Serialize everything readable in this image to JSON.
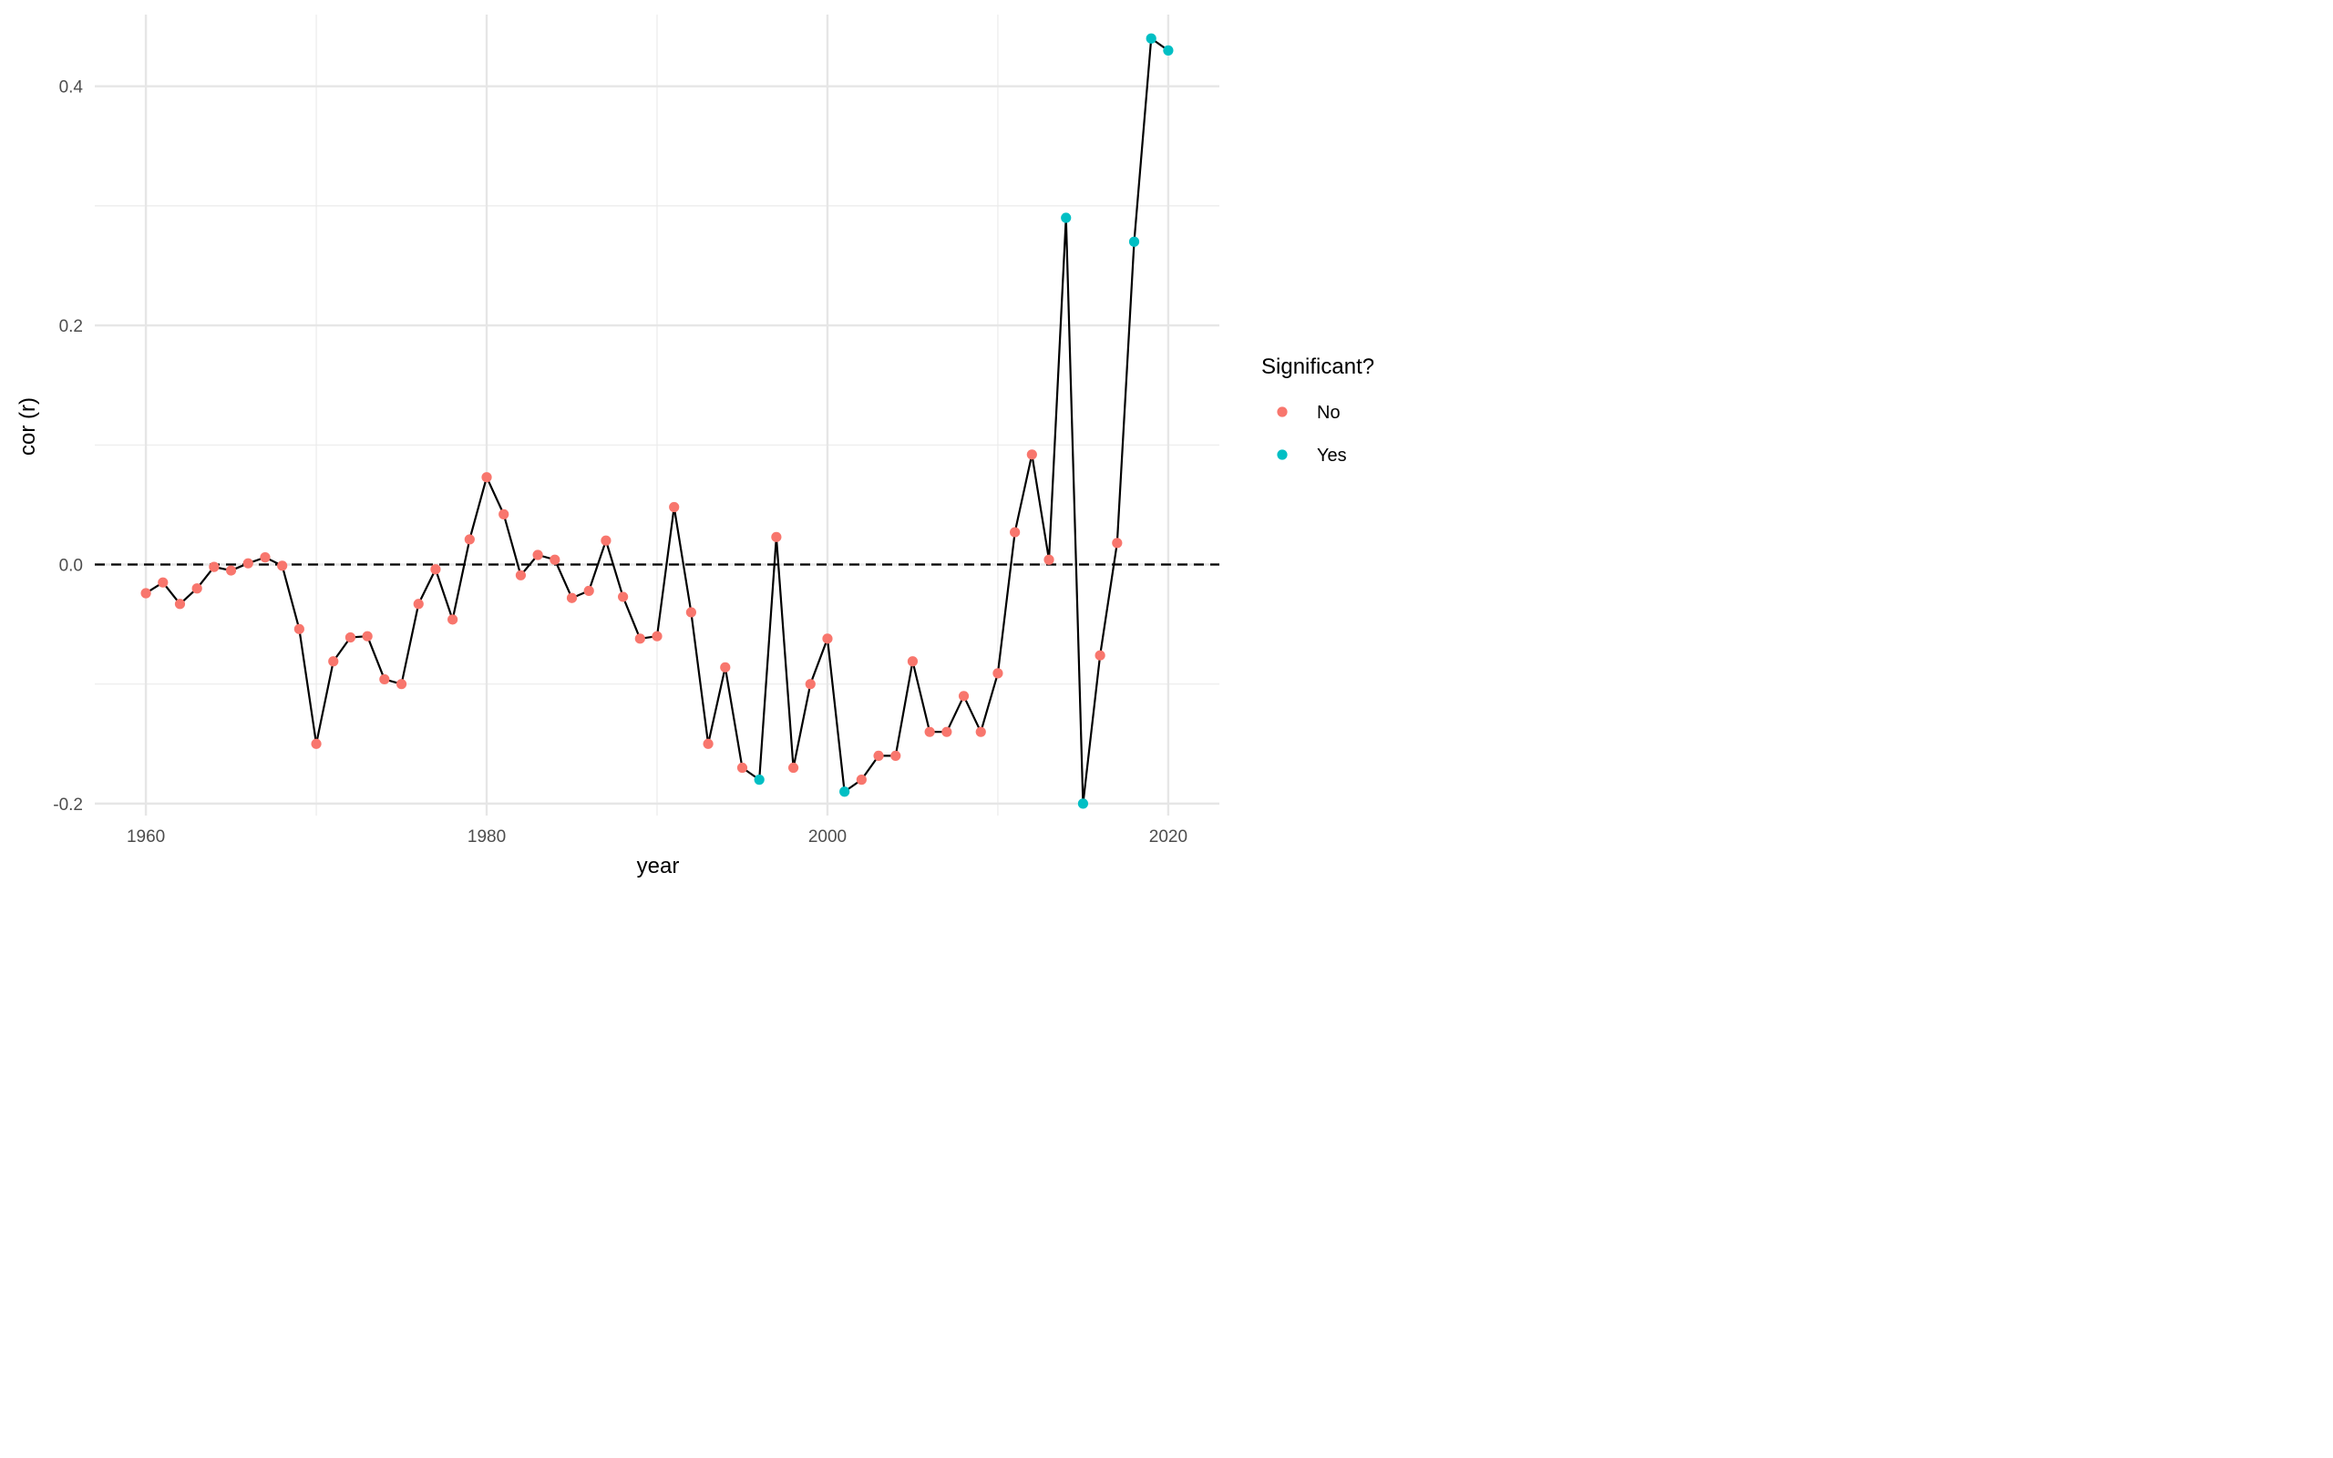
{
  "chart_data": {
    "type": "line",
    "title": "",
    "xlabel": "year",
    "ylabel": "cor (r)",
    "xlim": [
      1957,
      2023
    ],
    "ylim": [
      -0.21,
      0.46
    ],
    "x_ticks": [
      1960,
      1980,
      2000,
      2020
    ],
    "x_tick_labels": [
      "1960",
      "1980",
      "2000",
      "2020"
    ],
    "y_ticks": [
      -0.2,
      0.0,
      0.2,
      0.4
    ],
    "y_tick_labels": [
      "-0.2",
      "0.0",
      "0.2",
      "0.4"
    ],
    "grid": true,
    "reference_line": {
      "y": 0,
      "style": "dashed"
    },
    "legend": {
      "title": "Significant?",
      "placement": "right",
      "entries": [
        {
          "label": "No",
          "color": "#F8766D"
        },
        {
          "label": "Yes",
          "color": "#00BFC4"
        }
      ]
    },
    "line_color": "#000000",
    "x": [
      1960,
      1961,
      1962,
      1963,
      1964,
      1965,
      1966,
      1967,
      1968,
      1969,
      1970,
      1971,
      1972,
      1973,
      1974,
      1975,
      1976,
      1977,
      1978,
      1979,
      1980,
      1981,
      1982,
      1983,
      1984,
      1985,
      1986,
      1987,
      1988,
      1989,
      1990,
      1991,
      1992,
      1993,
      1994,
      1995,
      1996,
      1997,
      1998,
      1999,
      2000,
      2001,
      2002,
      2003,
      2004,
      2005,
      2006,
      2007,
      2008,
      2009,
      2010,
      2011,
      2012,
      2013,
      2014,
      2015,
      2016,
      2017,
      2018,
      2019,
      2020
    ],
    "y": [
      -0.024,
      -0.015,
      -0.033,
      -0.02,
      -0.002,
      -0.005,
      0.001,
      0.006,
      -0.001,
      -0.054,
      -0.15,
      -0.081,
      -0.061,
      -0.06,
      -0.096,
      -0.1,
      -0.033,
      -0.004,
      -0.046,
      0.021,
      0.073,
      0.042,
      -0.009,
      0.008,
      0.004,
      -0.028,
      -0.022,
      0.02,
      -0.027,
      -0.062,
      -0.06,
      0.048,
      -0.04,
      -0.15,
      -0.086,
      -0.17,
      -0.18,
      0.023,
      -0.17,
      -0.1,
      -0.062,
      -0.19,
      -0.18,
      -0.16,
      -0.16,
      -0.081,
      -0.14,
      -0.14,
      -0.11,
      -0.14,
      -0.091,
      0.027,
      0.092,
      0.004,
      0.29,
      -0.2,
      -0.076,
      0.018,
      0.27,
      0.44,
      0.43
    ],
    "significant": [
      "No",
      "No",
      "No",
      "No",
      "No",
      "No",
      "No",
      "No",
      "No",
      "No",
      "No",
      "No",
      "No",
      "No",
      "No",
      "No",
      "No",
      "No",
      "No",
      "No",
      "No",
      "No",
      "No",
      "No",
      "No",
      "No",
      "No",
      "No",
      "No",
      "No",
      "No",
      "No",
      "No",
      "No",
      "No",
      "No",
      "Yes",
      "No",
      "No",
      "No",
      "No",
      "Yes",
      "No",
      "No",
      "No",
      "No",
      "No",
      "No",
      "No",
      "No",
      "No",
      "No",
      "No",
      "No",
      "Yes",
      "Yes",
      "No",
      "No",
      "Yes",
      "Yes",
      "Yes"
    ]
  }
}
